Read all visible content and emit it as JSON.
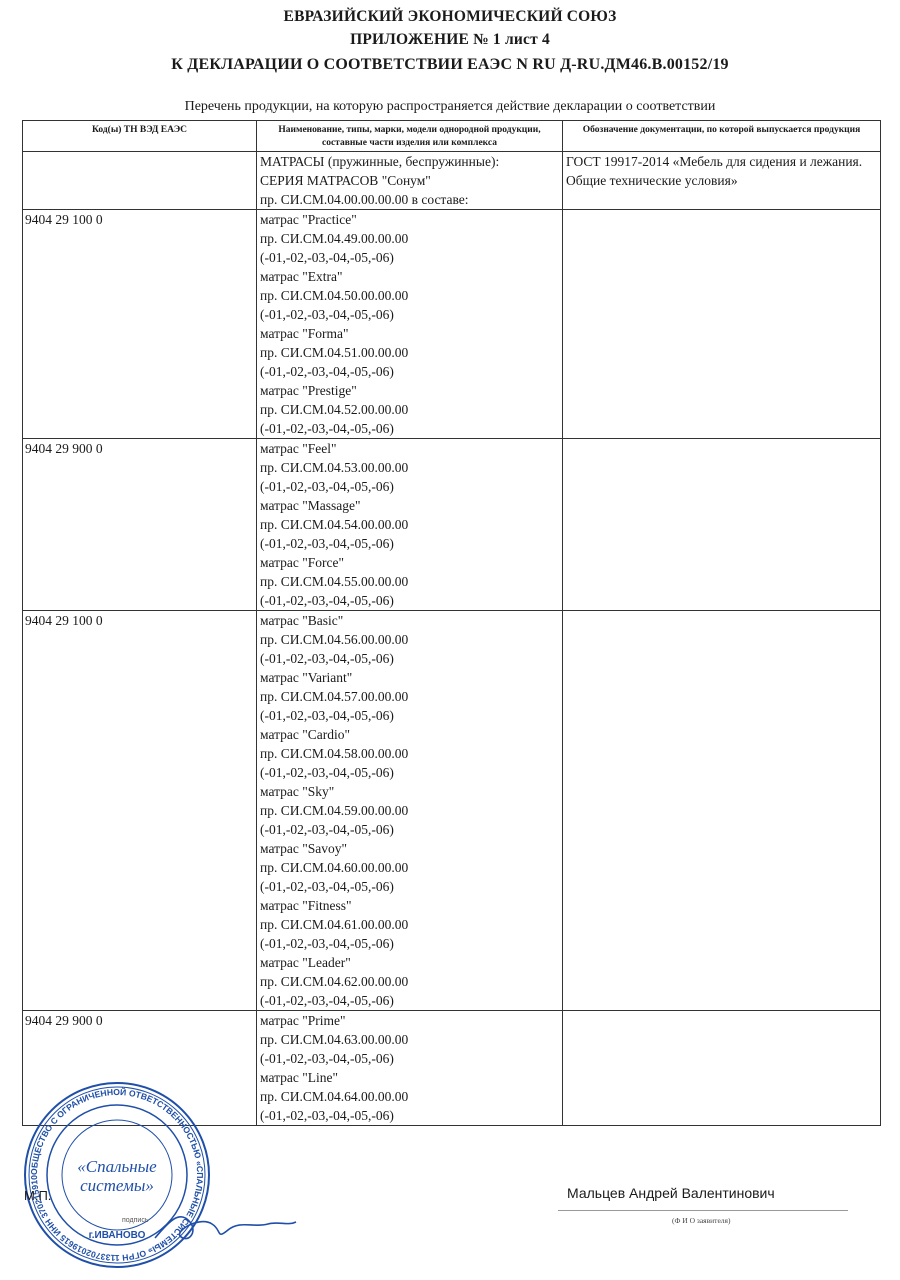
{
  "header": {
    "line1": "ЕВРАЗИЙСКИЙ ЭКОНОМИЧЕСКИЙ СОЮЗ",
    "line2": "ПРИЛОЖЕНИЕ № 1 лист 4",
    "line3": "К ДЕКЛАРАЦИИ О СООТВЕТСТВИИ ЕАЭС N RU Д-RU.ДМ46.В.00152/19"
  },
  "subtitle": "Перечень продукции, на которую распространяется действие декларации о соответствии",
  "table": {
    "col1": "Код(ы) ТН ВЭД ЕАЭС",
    "col2": "Наименование, типы, марки, модели однородной продукции, составные части изделия или комплекса",
    "col3": "Обозначение документации, по которой выпускается продукция",
    "intro": {
      "lines": [
        "МАТРАСЫ (пружинные, беспружинные):",
        "СЕРИЯ МАТРАСОВ \"Сонум\"",
        "пр. СИ.СМ.04.00.00.00.00 в составе:"
      ],
      "doc": "ГОСТ 19917-2014 «Мебель для сидения и лежания. Общие технические условия»"
    },
    "rows": [
      {
        "code": "9404 29 100 0",
        "lines": [
          "матрас \"Practice\"",
          "пр. СИ.СМ.04.49.00.00.00",
          "(-01,-02,-03,-04,-05,-06)",
          "матрас \"Extra\"",
          "пр. СИ.СМ.04.50.00.00.00",
          "(-01,-02,-03,-04,-05,-06)",
          "матрас \"Forma\"",
          "пр. СИ.СМ.04.51.00.00.00",
          "(-01,-02,-03,-04,-05,-06)",
          "матрас \"Prestige\"",
          "пр. СИ.СМ.04.52.00.00.00",
          "(-01,-02,-03,-04,-05,-06)"
        ]
      },
      {
        "code": "9404 29 900 0",
        "lines": [
          "матрас \"Feel\"",
          "пр. СИ.СМ.04.53.00.00.00",
          "(-01,-02,-03,-04,-05,-06)",
          "матрас \"Massage\"",
          "пр. СИ.СМ.04.54.00.00.00",
          "(-01,-02,-03,-04,-05,-06)",
          "матрас \"Force\"",
          "пр. СИ.СМ.04.55.00.00.00",
          "(-01,-02,-03,-04,-05,-06)"
        ]
      },
      {
        "code": "9404 29 100 0",
        "lines": [
          "матрас \"Basic\"",
          "пр. СИ.СМ.04.56.00.00.00",
          "(-01,-02,-03,-04,-05,-06)",
          "матрас \"Variant\"",
          "пр. СИ.СМ.04.57.00.00.00",
          "(-01,-02,-03,-04,-05,-06)",
          "матрас \"Cardio\"",
          "пр. СИ.СМ.04.58.00.00.00",
          "(-01,-02,-03,-04,-05,-06)",
          "матрас \"Sky\"",
          "пр. СИ.СМ.04.59.00.00.00",
          "(-01,-02,-03,-04,-05,-06)",
          "матрас \"Savoy\"",
          "пр. СИ.СМ.04.60.00.00.00",
          "(-01,-02,-03,-04,-05,-06)",
          "матрас \"Fitness\"",
          "пр. СИ.СМ.04.61.00.00.00",
          "(-01,-02,-03,-04,-05,-06)",
          "матрас \"Leader\"",
          "пр. СИ.СМ.04.62.00.00.00",
          "(-01,-02,-03,-04,-05,-06)"
        ]
      },
      {
        "code": "9404 29 900 0",
        "lines": [
          "матрас \"Prime\"",
          "пр. СИ.СМ.04.63.00.00.00",
          "(-01,-02,-03,-04,-05,-06)",
          "матрас \"Line\"",
          "пр. СИ.СМ.04.64.00.00.00",
          "(-01,-02,-03,-04,-05,-06)"
        ]
      }
    ]
  },
  "stamp": {
    "ring_text": "ОБЩЕСТВО С ОГРАНИЧЕННОЙ ОТВЕТСТВЕННОСТЬЮ «СПАЛЬНЫЕ СИСТЕМЫ» ОГРН 1133702019615 ИНН 3702159100",
    "center_line1": "«Спальные",
    "center_line2": "системы»",
    "city": "г.ИВАНОВО",
    "color": "#1f4fa8"
  },
  "footer": {
    "mp": "М.П.",
    "signature_label": "подпись",
    "signer_name": "Мальцев Андрей Валентинович",
    "fio_label": "(Ф И О  заявителя)"
  }
}
